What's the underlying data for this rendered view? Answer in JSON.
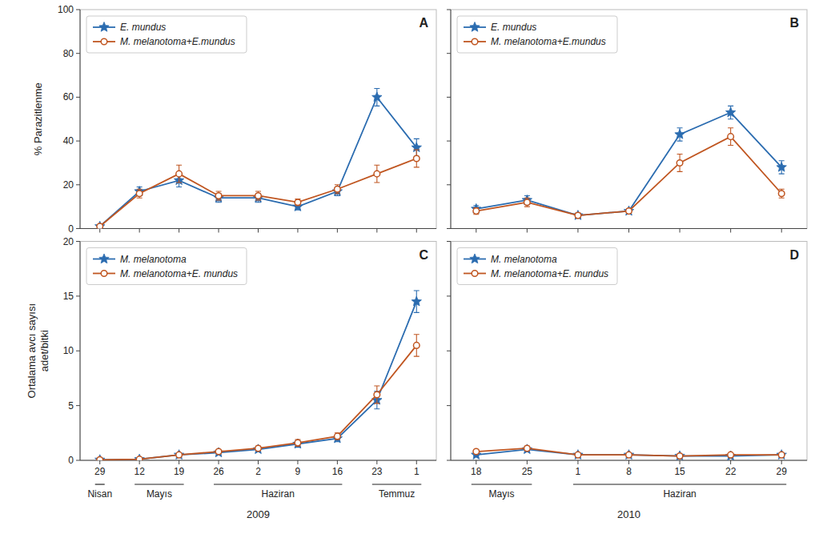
{
  "chart_data": [
    {
      "type": "line",
      "annotations": [
        "A"
      ],
      "ylabel": "% Parazitlenme",
      "categories": [
        null,
        null,
        null,
        null,
        null,
        null,
        null,
        null,
        null
      ],
      "series": [
        {
          "name": "E. mundus",
          "color": "#2b6cb0",
          "marker": "star",
          "values": [
            1,
            17,
            22,
            14,
            14,
            10,
            17,
            60,
            37
          ],
          "errors": [
            0.5,
            2,
            3,
            2,
            2,
            1.5,
            2,
            4,
            4
          ]
        },
        {
          "name": "M. melanotoma+E.mundus",
          "color": "#c05621",
          "marker": "open-circle",
          "values": [
            1,
            16,
            25,
            15,
            15,
            12,
            18,
            25,
            32
          ],
          "errors": [
            0.5,
            2,
            4,
            2,
            2,
            1.5,
            2,
            4,
            4
          ]
        }
      ],
      "ylim": [
        0,
        100
      ],
      "yticks": [
        0,
        20,
        40,
        60,
        80,
        100
      ],
      "grid": false,
      "legend": "upper left",
      "tick_labels": "y"
    },
    {
      "type": "line",
      "annotations": [
        "B"
      ],
      "categories": [
        null,
        null,
        null,
        null,
        null,
        null,
        null
      ],
      "series": [
        {
          "name": "E. mundus",
          "color": "#2b6cb0",
          "marker": "star",
          "values": [
            9,
            13,
            6,
            8,
            43,
            53,
            28
          ],
          "errors": [
            1.5,
            2,
            1,
            1,
            3,
            3,
            3
          ]
        },
        {
          "name": "M. melanotoma+E.mundus",
          "color": "#c05621",
          "marker": "open-circle",
          "values": [
            8,
            12,
            6,
            8,
            30,
            42,
            16
          ],
          "errors": [
            1.5,
            2,
            1,
            1,
            4,
            4,
            2
          ]
        }
      ],
      "ylim": [
        0,
        100
      ],
      "yticks": [
        0,
        20,
        40,
        60,
        80,
        100
      ],
      "grid": false,
      "legend": "upper left",
      "tick_labels": false
    },
    {
      "type": "line",
      "annotations": [
        "C"
      ],
      "ylabel": "Ortalama avcı sayısı\nadet/bitki",
      "categories": [
        "29",
        "12",
        "19",
        "26",
        "2",
        "9",
        "16",
        "23",
        "1"
      ],
      "series": [
        {
          "name": "M. melanotoma",
          "color": "#2b6cb0",
          "marker": "star",
          "values": [
            0.05,
            0.1,
            0.5,
            0.7,
            1.0,
            1.5,
            2.0,
            5.5,
            14.5
          ],
          "errors": [
            0.05,
            0.05,
            0.1,
            0.1,
            0.2,
            0.3,
            0.3,
            0.8,
            1.0
          ]
        },
        {
          "name": "M. melanotoma+E. mundus",
          "color": "#c05621",
          "marker": "open-circle",
          "values": [
            0.05,
            0.1,
            0.5,
            0.8,
            1.1,
            1.6,
            2.2,
            6.0,
            10.5
          ],
          "errors": [
            0.05,
            0.05,
            0.1,
            0.15,
            0.2,
            0.3,
            0.3,
            0.8,
            1.0
          ]
        }
      ],
      "ylim": [
        0,
        20
      ],
      "yticks": [
        0,
        5,
        10,
        15,
        20
      ],
      "grid": false,
      "legend": "upper left",
      "x_groups": [
        {
          "label": "Nisan",
          "from": "29",
          "to": "29"
        },
        {
          "label": "Mayıs",
          "from": "12",
          "to": "19"
        },
        {
          "label": "Haziran",
          "from": "26",
          "to": "16"
        },
        {
          "label": "Temmuz",
          "from": "23",
          "to": "1"
        }
      ],
      "x_group_title": "2009"
    },
    {
      "type": "line",
      "annotations": [
        "D"
      ],
      "categories": [
        "18",
        "25",
        "1",
        "8",
        "15",
        "22",
        "29"
      ],
      "series": [
        {
          "name": "M. melanotoma",
          "color": "#2b6cb0",
          "marker": "star",
          "values": [
            0.5,
            1.0,
            0.5,
            0.5,
            0.4,
            0.4,
            0.5
          ],
          "errors": [
            0.1,
            0.2,
            0.1,
            0.1,
            0.1,
            0.1,
            0.1
          ]
        },
        {
          "name": "M. melanotoma+E. mundus",
          "color": "#c05621",
          "marker": "open-circle",
          "values": [
            0.8,
            1.1,
            0.5,
            0.5,
            0.4,
            0.5,
            0.5
          ],
          "errors": [
            0.15,
            0.2,
            0.1,
            0.1,
            0.1,
            0.1,
            0.1
          ]
        }
      ],
      "ylim": [
        0,
        20
      ],
      "yticks": [
        0,
        5,
        10,
        15,
        20
      ],
      "grid": false,
      "legend": "upper left",
      "tick_labels": "x",
      "x_groups": [
        {
          "label": "Mayıs",
          "from": "18",
          "to": "25"
        },
        {
          "label": "Haziran",
          "from": "1",
          "to": "29"
        }
      ],
      "x_group_title": "2010"
    }
  ]
}
